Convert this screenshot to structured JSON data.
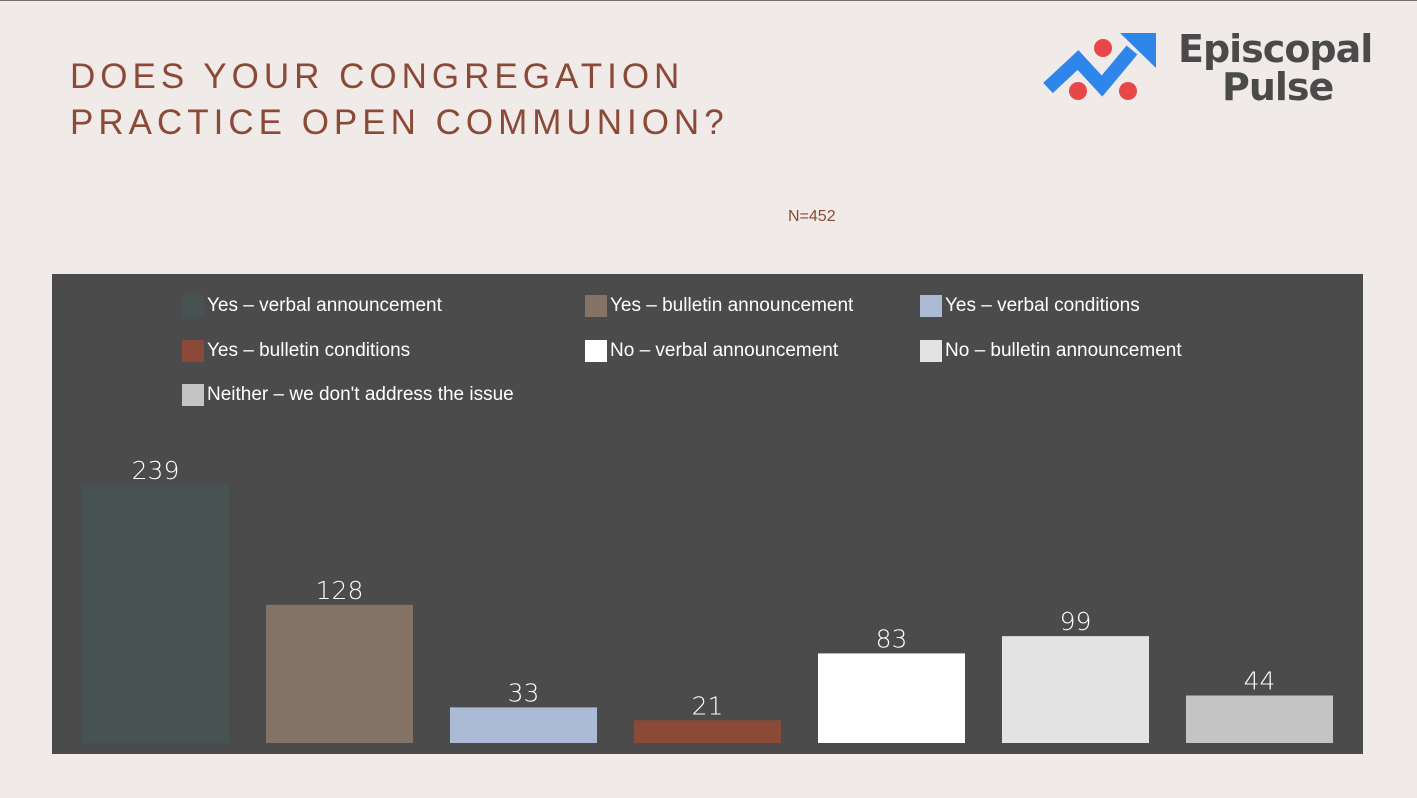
{
  "title_line1": "DOES YOUR CONGREGATION",
  "title_line2": "PRACTICE OPEN COMMUNION?",
  "logo": {
    "line1": "Episcopal",
    "line2": "Pulse",
    "icon": "trending-up-arrow-icon",
    "arrow_color": "#2f86ea",
    "dot_color": "#e8474a"
  },
  "sample_size": "N=452",
  "chart_data": {
    "type": "bar",
    "categories": [
      "Yes – verbal announcement",
      "Yes – bulletin announcement",
      "Yes – verbal conditions",
      "Yes – bulletin conditions",
      "No – verbal announcement",
      "No – bulletin announcement",
      "Neither – we don't address the issue"
    ],
    "values": [
      239,
      128,
      33,
      21,
      83,
      99,
      44
    ],
    "colors": [
      "#465352",
      "#837366",
      "#abbbd6",
      "#8b4a38",
      "#ffffff",
      "#e3e3e3",
      "#c4c4c4"
    ],
    "ylim": [
      0,
      239
    ],
    "legend_position": "top",
    "grid": false,
    "data_labels": true
  }
}
